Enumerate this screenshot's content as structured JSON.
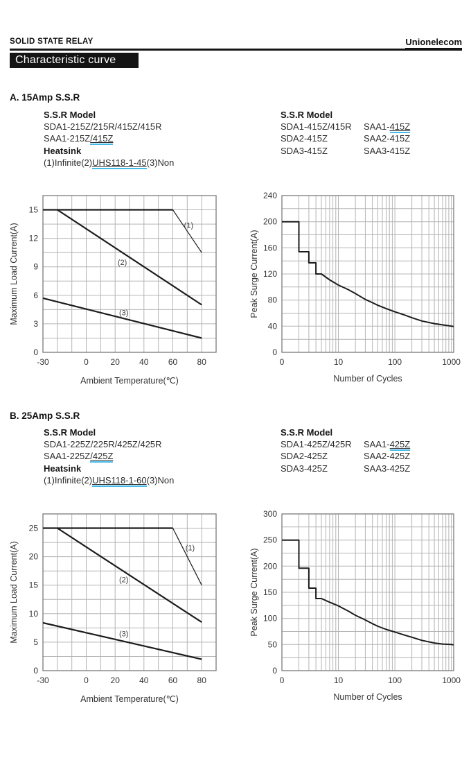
{
  "header": {
    "doc_type": "SOLID STATE RELAY",
    "brand": "Unionelecom",
    "page_title": "Characteristic curve"
  },
  "section_a": {
    "heading": "A. 15Amp S.S.R",
    "model_title": "S.S.R Model",
    "model_line1": "SDA1-215Z/215R/415Z/415R",
    "model_line2_text": "SAA1-215Z",
    "model_line2_link": "/415Z",
    "heatsink_title": "Heatsink",
    "heatsink_part1": "(1)Infinite(2)",
    "heatsink_link": "UHS118-1-45",
    "heatsink_part2": "(3)Non",
    "table_title": "S.S.R Model",
    "table": {
      "r0c0": "SDA1-415Z/415R",
      "r0c1_text": "SAA1-",
      "r0c1_link": "415Z",
      "r1c0": "SDA2-415Z",
      "r1c1": "SAA2-415Z",
      "r2c0": "SDA3-415Z",
      "r2c1": "SAA3-415Z"
    }
  },
  "section_b": {
    "heading": "B. 25Amp S.S.R",
    "model_title": "S.S.R Model",
    "model_line1": "SDA1-225Z/225R/425Z/425R",
    "model_line2_text": "SAA1-225Z",
    "model_line2_link": "/425Z",
    "heatsink_title": "Heatsink",
    "heatsink_part1": "(1)Infinite(2)",
    "heatsink_link": "UHS118-1-60",
    "heatsink_part2": "(3)Non",
    "table_title": "S.S.R Model",
    "table": {
      "r0c0": "SDA1-425Z/425R",
      "r0c1_text": "SAA1-",
      "r0c1_link": "425Z",
      "r1c0": "SDA2-425Z",
      "r1c1": "SAA2-425Z",
      "r2c0": "SDA3-425Z",
      "r2c1": "SAA3-425Z"
    }
  },
  "colors": {
    "curve": "#1c1c1c",
    "grid": "#b4b4b4",
    "plot_border": "#7a7a7a",
    "link_underline": "#45b9e8",
    "tick_text": "#333333"
  },
  "chart_data": [
    {
      "id": "a-load",
      "type": "line",
      "xscale": "linear",
      "title": "15Amp S.S.R maximum load current vs ambient temperature",
      "xlabel": "Ambient Temperature(℃)",
      "ylabel": "Maximum Load Current(A)",
      "xlim": [
        -30,
        90
      ],
      "ylim": [
        0,
        16.5
      ],
      "xgrid_step": 10,
      "ygrid_step": 1.5,
      "grid": true,
      "xticks": [
        [
          -30,
          "-30"
        ],
        [
          0,
          "0"
        ],
        [
          20,
          "20"
        ],
        [
          40,
          "40"
        ],
        [
          60,
          "60"
        ],
        [
          80,
          "80"
        ]
      ],
      "yticks": [
        [
          0,
          "0"
        ],
        [
          3,
          "3"
        ],
        [
          6,
          "6"
        ],
        [
          9,
          "9"
        ],
        [
          12,
          "12"
        ],
        [
          15,
          "15"
        ]
      ],
      "series": [
        {
          "name": "(1)",
          "points": [
            [
              -30,
              15
            ],
            [
              60,
              15
            ]
          ],
          "width": 2.2
        },
        {
          "name": "(1)",
          "points": [
            [
              60,
              15
            ],
            [
              80,
              10.5
            ]
          ],
          "width": 1.2
        },
        {
          "name": "(2)",
          "points": [
            [
              -20,
              15
            ],
            [
              80,
              5
            ]
          ],
          "width": 2.2
        },
        {
          "name": "(3)",
          "points": [
            [
              -30,
              5.7
            ],
            [
              80,
              1.5
            ]
          ],
          "width": 2.2
        }
      ],
      "annotations": [
        {
          "text": "(1)",
          "x": 71,
          "y": 13.4
        },
        {
          "text": "(2)",
          "x": 25,
          "y": 9.5
        },
        {
          "text": "(3)",
          "x": 26,
          "y": 4.2
        }
      ]
    },
    {
      "id": "a-surge",
      "type": "line",
      "xscale": "log",
      "title": "15Amp S.S.R peak surge current vs number of cycles",
      "xlabel": "Number of Cycles",
      "ylabel": "Peak Surge Current(A)",
      "xlim": [
        1,
        1100
      ],
      "ylim": [
        0,
        240
      ],
      "ygrid_step": 20,
      "grid": true,
      "xticks": [
        [
          1,
          "0"
        ],
        [
          10,
          "10"
        ],
        [
          100,
          "100"
        ],
        [
          1000,
          "1000"
        ]
      ],
      "yticks": [
        [
          0,
          "0"
        ],
        [
          40,
          "40"
        ],
        [
          80,
          "80"
        ],
        [
          120,
          "120"
        ],
        [
          160,
          "160"
        ],
        [
          200,
          "200"
        ],
        [
          240,
          "240"
        ]
      ],
      "series": [
        {
          "name": "peak surge current",
          "width": 2,
          "points": [
            [
              1,
              200
            ],
            [
              2,
              200
            ],
            [
              2,
              154
            ],
            [
              3,
              154
            ],
            [
              3,
              137
            ],
            [
              4,
              137
            ],
            [
              4,
              120
            ],
            [
              5,
              120
            ],
            [
              7,
              111
            ],
            [
              10,
              103
            ],
            [
              15,
              96
            ],
            [
              20,
              90
            ],
            [
              30,
              81
            ],
            [
              40,
              76
            ],
            [
              50,
              72
            ],
            [
              70,
              67
            ],
            [
              100,
              62
            ],
            [
              150,
              57
            ],
            [
              200,
              53
            ],
            [
              300,
              48
            ],
            [
              500,
              44
            ],
            [
              700,
              42
            ],
            [
              1000,
              40
            ],
            [
              1100,
              39.5
            ]
          ]
        }
      ],
      "annotations": []
    },
    {
      "id": "b-load",
      "type": "line",
      "xscale": "linear",
      "title": "25Amp S.S.R maximum load current vs ambient temperature",
      "xlabel": "Ambient Temperature(℃)",
      "ylabel": "Maximum Load Current(A)",
      "xlim": [
        -30,
        90
      ],
      "ylim": [
        0,
        27.5
      ],
      "xgrid_step": 10,
      "ygrid_step": 2.5,
      "grid": true,
      "xticks": [
        [
          -30,
          "-30"
        ],
        [
          0,
          "0"
        ],
        [
          20,
          "20"
        ],
        [
          40,
          "40"
        ],
        [
          60,
          "60"
        ],
        [
          80,
          "80"
        ]
      ],
      "yticks": [
        [
          0,
          "0"
        ],
        [
          5,
          "5"
        ],
        [
          10,
          "10"
        ],
        [
          15,
          "15"
        ],
        [
          20,
          "20"
        ],
        [
          25,
          "25"
        ]
      ],
      "series": [
        {
          "name": "(1)",
          "points": [
            [
              -30,
              25
            ],
            [
              60,
              25
            ]
          ],
          "width": 2.2
        },
        {
          "name": "(1)",
          "points": [
            [
              60,
              25
            ],
            [
              80,
              15
            ]
          ],
          "width": 1.2
        },
        {
          "name": "(2)",
          "points": [
            [
              -20,
              25
            ],
            [
              80,
              8.5
            ]
          ],
          "width": 2.2
        },
        {
          "name": "(3)",
          "points": [
            [
              -30,
              8.4
            ],
            [
              80,
              2
            ]
          ],
          "width": 2.2
        }
      ],
      "annotations": [
        {
          "text": "(1)",
          "x": 72,
          "y": 21.6
        },
        {
          "text": "(2)",
          "x": 26,
          "y": 16.0
        },
        {
          "text": "(3)",
          "x": 26,
          "y": 6.5
        }
      ]
    },
    {
      "id": "b-surge",
      "type": "line",
      "xscale": "log",
      "title": "25Amp S.S.R peak surge current vs number of cycles",
      "xlabel": "Number of Cycles",
      "ylabel": "Peak Surge Current(A)",
      "xlim": [
        1,
        1100
      ],
      "ylim": [
        0,
        300
      ],
      "ygrid_step": 25,
      "grid": true,
      "xticks": [
        [
          1,
          "0"
        ],
        [
          10,
          "10"
        ],
        [
          100,
          "100"
        ],
        [
          1000,
          "1000"
        ]
      ],
      "yticks": [
        [
          0,
          "0"
        ],
        [
          50,
          "50"
        ],
        [
          100,
          "100"
        ],
        [
          150,
          "150"
        ],
        [
          200,
          "200"
        ],
        [
          250,
          "250"
        ],
        [
          300,
          "300"
        ]
      ],
      "series": [
        {
          "name": "peak surge current",
          "width": 2,
          "points": [
            [
              1,
              250
            ],
            [
              2,
              250
            ],
            [
              2,
              196
            ],
            [
              3,
              196
            ],
            [
              3,
              158
            ],
            [
              4,
              158
            ],
            [
              4,
              138
            ],
            [
              5,
              138
            ],
            [
              7,
              131
            ],
            [
              10,
              124
            ],
            [
              15,
              114
            ],
            [
              20,
              106
            ],
            [
              30,
              97
            ],
            [
              40,
              90
            ],
            [
              50,
              85
            ],
            [
              70,
              79
            ],
            [
              100,
              74
            ],
            [
              150,
              68
            ],
            [
              200,
              64
            ],
            [
              300,
              58
            ],
            [
              500,
              53
            ],
            [
              700,
              51
            ],
            [
              1000,
              50
            ],
            [
              1100,
              49.5
            ]
          ]
        }
      ],
      "annotations": []
    }
  ]
}
